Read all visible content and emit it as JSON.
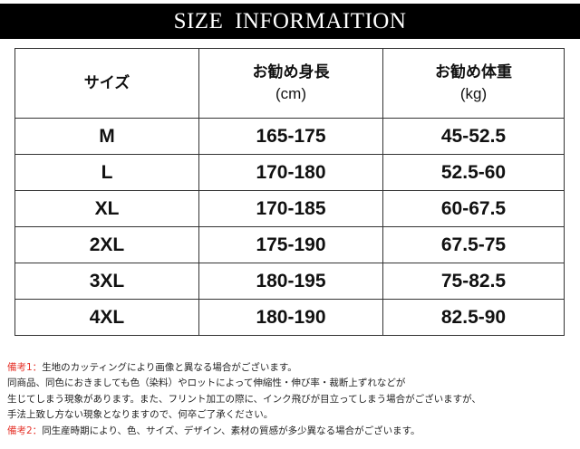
{
  "title": "SIZE  INFORMAITION",
  "table": {
    "headers": [
      {
        "label": "サイズ",
        "unit": ""
      },
      {
        "label": "お勧め身長",
        "unit": "(cm)"
      },
      {
        "label": "お勧め体重",
        "unit": "(kg)"
      }
    ],
    "rows": [
      [
        "M",
        "165-175",
        "45-52.5"
      ],
      [
        "L",
        "170-180",
        "52.5-60"
      ],
      [
        "XL",
        "170-185",
        "60-67.5"
      ],
      [
        "2XL",
        "175-190",
        "67.5-75"
      ],
      [
        "3XL",
        "180-195",
        "75-82.5"
      ],
      [
        "4XL",
        "180-190",
        "82.5-90"
      ]
    ]
  },
  "notes": {
    "note1_label": "備考1：",
    "note1_line1": "生地のカッティングにより画像と異なる場合がございます。",
    "note1_line2": "同商品、同色におきましても色（染料）やロットによって伸縮性・伸び率・裁断上ずれなどが",
    "note1_line3": "生じてしまう現象があります。また、フリント加工の際に、インク飛びが目立ってしまう場合がございますが、",
    "note1_line4": "手法上致し方ない現象となりますので、何卒ご了承ください。",
    "note2_label": "備考2：",
    "note2_text": "同生産時期により、色、サイズ、デザイン、素材の質感が多少異なる場合がございます。",
    "label_color": "#e5332a"
  }
}
